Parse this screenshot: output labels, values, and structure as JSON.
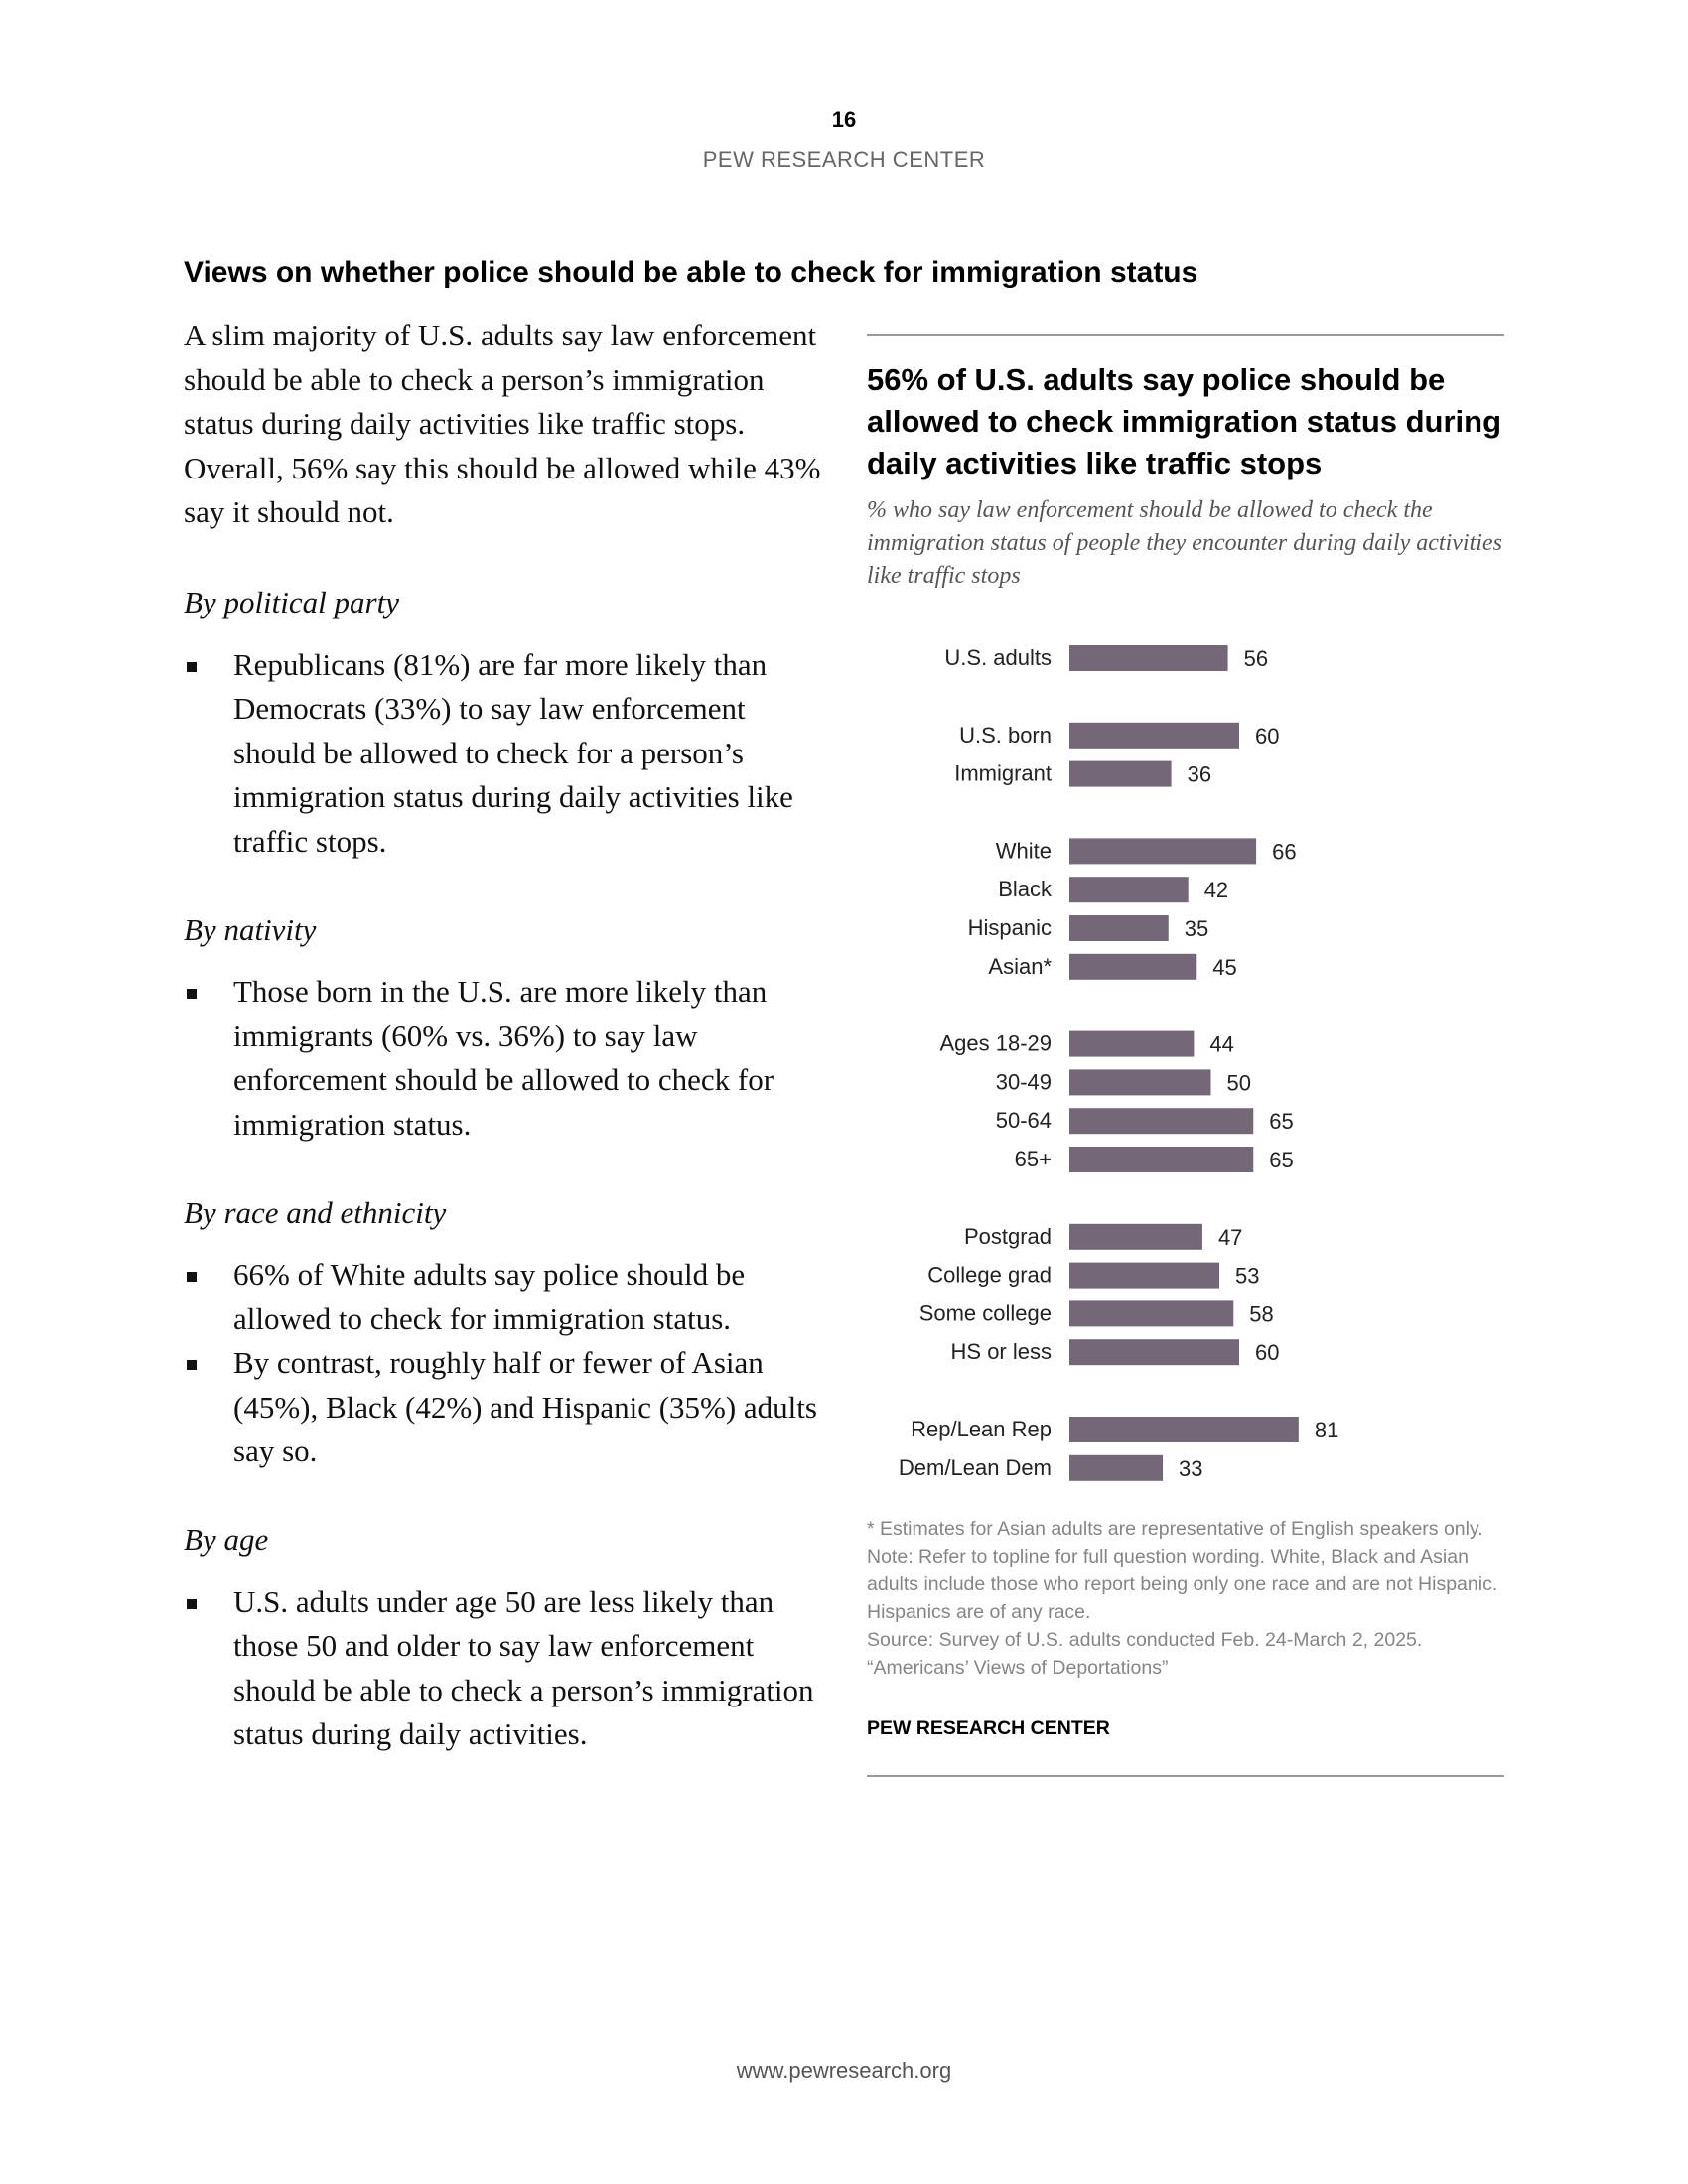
{
  "header": {
    "page_number": "16",
    "org": "PEW RESEARCH CENTER"
  },
  "section_heading": "Views on whether police should be able to check for immigration status",
  "body": {
    "intro": "A slim majority of U.S. adults say law enforcement should be able to check a person’s immigration status during daily activities like traffic stops. Overall, 56% say this should be allowed while 43% say it should not.",
    "sections": [
      {
        "subhead": "By political party",
        "bullets": [
          "Republicans (81%) are far more likely than Democrats (33%) to say law enforcement should be allowed to check for a person’s immigration status during daily activities like traffic stops."
        ]
      },
      {
        "subhead": "By nativity",
        "bullets": [
          "Those born in the U.S. are more likely than immigrants (60% vs. 36%) to say law enforcement should be allowed to check for immigration status."
        ]
      },
      {
        "subhead": "By race and ethnicity",
        "bullets": [
          "66% of White adults say police should be allowed to check for immigration status.",
          "By contrast, roughly half or fewer of Asian (45%), Black (42%) and Hispanic (35%) adults say so."
        ]
      },
      {
        "subhead": "By age",
        "bullets": [
          "U.S. adults under age 50 are less likely than those 50 and older to say law enforcement should be able to check a person’s immigration status during daily activities."
        ]
      }
    ]
  },
  "chart_data": {
    "type": "bar",
    "orientation": "horizontal",
    "title": "56% of U.S. adults say police should be allowed to check immigration status during daily activities like traffic stops",
    "subtitle": "% who say law enforcement should be allowed to check the immigration status of people they encounter during daily activities like traffic stops",
    "bar_color": "#746878",
    "groups": [
      {
        "categories": [
          "U.S. adults"
        ],
        "values": [
          56
        ]
      },
      {
        "categories": [
          "U.S. born",
          "Immigrant"
        ],
        "values": [
          60,
          36
        ]
      },
      {
        "categories": [
          "White",
          "Black",
          "Hispanic",
          "Asian*"
        ],
        "values": [
          66,
          42,
          35,
          45
        ]
      },
      {
        "categories": [
          "Ages 18-29",
          "30-49",
          "50-64",
          "65+"
        ],
        "values": [
          44,
          50,
          65,
          65
        ]
      },
      {
        "categories": [
          "Postgrad",
          "College grad",
          "Some college",
          "HS or less"
        ],
        "values": [
          47,
          53,
          58,
          60
        ]
      },
      {
        "categories": [
          "Rep/Lean Rep",
          "Dem/Lean Dem"
        ],
        "values": [
          81,
          33
        ]
      }
    ],
    "xlim": [
      0,
      100
    ]
  },
  "chart_notes": {
    "asterisk": "* Estimates for Asian adults are representative of English speakers only.",
    "note": "Note: Refer to topline for full question wording. White, Black and Asian adults include those who report being only one race and are not Hispanic. Hispanics are of any race.",
    "source": "Source: Survey of U.S. adults conducted Feb. 24-March 2, 2025.",
    "report": "“Americans’ Views of Deportations”",
    "org": "PEW RESEARCH CENTER"
  },
  "footer": {
    "url": "www.pewresearch.org"
  }
}
